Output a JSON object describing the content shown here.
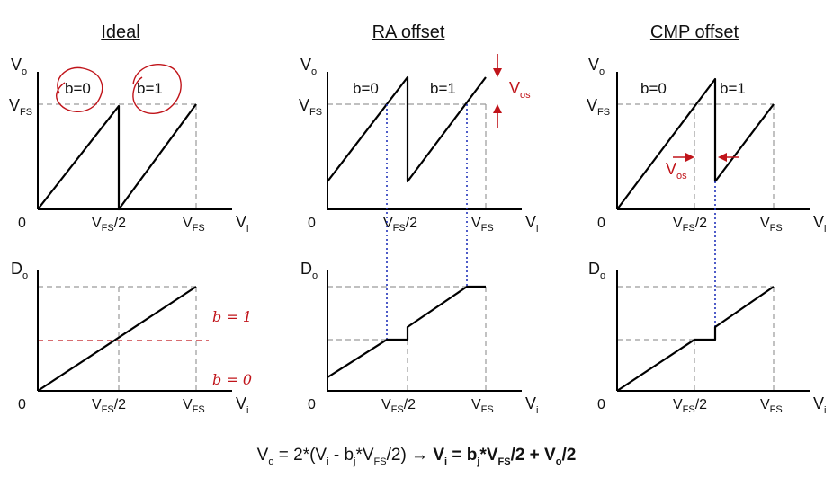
{
  "panels": [
    {
      "title": "Ideal"
    },
    {
      "title": "RA offset"
    },
    {
      "title": "CMP offset"
    }
  ],
  "labels": {
    "vo_main": "V",
    "vo_sub": "o",
    "do_main": "D",
    "do_sub": "o",
    "vi_main": "V",
    "vi_sub": "i",
    "vfs_main": "V",
    "vfs_sub": "FS",
    "half_suffix": "/2",
    "zero": "0",
    "b0": "b=0",
    "b1": "b=1",
    "vos_main": "V",
    "vos_sub": "os"
  },
  "annotations": {
    "hand_b1": "b = 1",
    "hand_b0": "b = 0"
  },
  "formula": {
    "p1": "V",
    "p1_sub": "o",
    "p2": " = 2*(V",
    "p2_sub": "i",
    "p3": " - b",
    "p3_sub": "j",
    "p4": "*V",
    "p4_sub": "FS",
    "p5": "/2) → ",
    "b1": "V",
    "b1_sub": "i",
    "b2": " = b",
    "b2_sub": "j",
    "b3": "*V",
    "b3_sub": "FS",
    "b4": "/2 + V",
    "b4_sub": "o",
    "b5": "/2"
  },
  "colors": {
    "curve": "#000000",
    "guide": "#9a9a9a",
    "link": "#2233bb",
    "offset": "#c0141a"
  }
}
